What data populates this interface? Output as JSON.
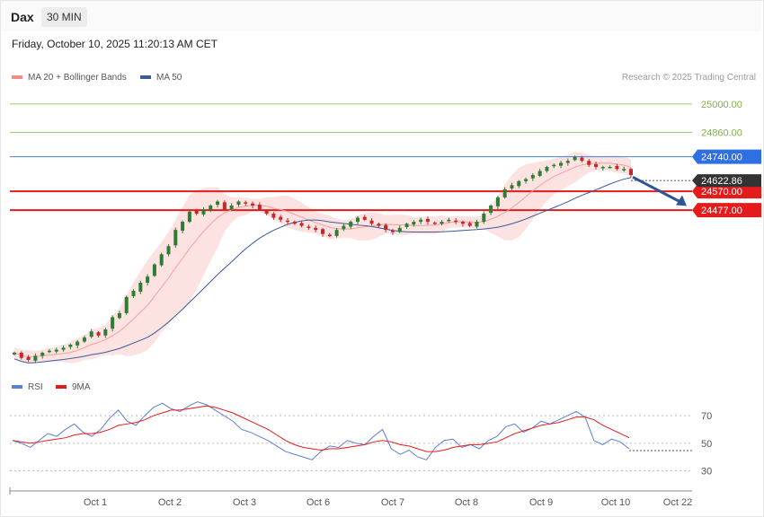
{
  "header": {
    "ticker": "Dax",
    "interval": "30 MIN",
    "datetime": "Friday, October 10, 2025 11:20:13 AM CET",
    "copyright": "Research © 2025 Trading Central"
  },
  "colors": {
    "candle_up": "#2e7d32",
    "candle_down": "#c62828",
    "bollinger_fill": "#fde2e2",
    "ma20": "#f4a0a0",
    "ma50": "#3b5b9a",
    "resistance": "#4a7fd6",
    "support": "#e41b1b",
    "target": "#9ccc65",
    "arrow": "#2f5597",
    "rsi": "#5b7fd6",
    "rsi_ma": "#e41b1b"
  },
  "chart_data": [
    {
      "type": "candlestick",
      "legend": [
        {
          "name": "MA 20 + Bollinger Bands",
          "color": "#f28b82"
        },
        {
          "name": "MA 50",
          "color": "#3b5b9a"
        }
      ],
      "legend_placement": "top-left",
      "x_ticks": [
        "Oct 1",
        "Oct 2",
        "Oct 3",
        "Oct 6",
        "Oct 7",
        "Oct 8",
        "Oct 9",
        "Oct 10",
        "Oct 22"
      ],
      "ylim": [
        23700,
        25070
      ],
      "last_price": 24622.86,
      "levels": [
        {
          "value": 25000.0,
          "label": "25000.00",
          "kind": "target"
        },
        {
          "value": 24860.0,
          "label": "24860.00",
          "kind": "target"
        },
        {
          "value": 24740.0,
          "label": "24740.00",
          "kind": "resistance"
        },
        {
          "value": 24570.0,
          "label": "24570.00",
          "kind": "support"
        },
        {
          "value": 24477.0,
          "label": "24477.00",
          "kind": "support"
        }
      ],
      "forecast_arrow": {
        "from": [
          "Oct 10",
          24640
        ],
        "to": [
          "Oct 10",
          24480
        ]
      },
      "close_path": [
        23775,
        23750,
        23740,
        23760,
        23775,
        23785,
        23790,
        23800,
        23815,
        23830,
        23850,
        23880,
        23860,
        23890,
        23950,
        23970,
        24050,
        24080,
        24120,
        24150,
        24210,
        24260,
        24300,
        24380,
        24420,
        24470,
        24460,
        24480,
        24500,
        24520,
        24480,
        24500,
        24520,
        24510,
        24500,
        24480,
        24460,
        24440,
        24430,
        24420,
        24410,
        24400,
        24390,
        24380,
        24360,
        24350,
        24380,
        24400,
        24420,
        24440,
        24430,
        24410,
        24400,
        24380,
        24370,
        24390,
        24410,
        24420,
        24430,
        24420,
        24410,
        24420,
        24430,
        24420,
        24410,
        24400,
        24420,
        24460,
        24500,
        24540,
        24580,
        24600,
        24620,
        24630,
        24650,
        24670,
        24690,
        24700,
        24710,
        24720,
        24740,
        24720,
        24700,
        24690,
        24690,
        24690,
        24680,
        24680,
        24650
      ]
    },
    {
      "type": "line",
      "title": "RSI",
      "legend": [
        {
          "name": "RSI",
          "color": "#5b7fd6"
        },
        {
          "name": "9MA",
          "color": "#e41b1b"
        }
      ],
      "y_ticks": [
        30,
        50,
        70
      ],
      "ylim": [
        20,
        85
      ],
      "rsi": [
        52,
        50,
        47,
        52,
        57,
        55,
        60,
        64,
        58,
        55,
        60,
        68,
        74,
        66,
        63,
        70,
        76,
        79,
        75,
        73,
        77,
        80,
        78,
        74,
        70,
        66,
        60,
        58,
        55,
        52,
        48,
        44,
        42,
        40,
        38,
        44,
        48,
        47,
        52,
        50,
        49,
        55,
        60,
        46,
        42,
        45,
        40,
        38,
        47,
        52,
        53,
        47,
        49,
        46,
        52,
        55,
        62,
        64,
        58,
        61,
        66,
        64,
        67,
        70,
        73,
        69,
        52,
        49,
        53,
        51,
        46
      ],
      "rsi_ma": [
        52,
        51,
        50,
        51,
        52,
        53,
        54,
        56,
        57,
        57,
        58,
        60,
        63,
        64,
        65,
        67,
        70,
        72,
        74,
        74,
        75,
        76,
        77,
        76,
        74,
        72,
        69,
        66,
        63,
        60,
        56,
        52,
        49,
        47,
        46,
        45,
        46,
        46,
        47,
        48,
        49,
        51,
        52,
        51,
        49,
        48,
        46,
        44,
        44,
        45,
        47,
        48,
        49,
        49,
        50,
        51,
        54,
        57,
        59,
        61,
        63,
        64,
        65,
        67,
        69,
        69,
        67,
        63,
        60,
        57,
        54
      ]
    }
  ]
}
